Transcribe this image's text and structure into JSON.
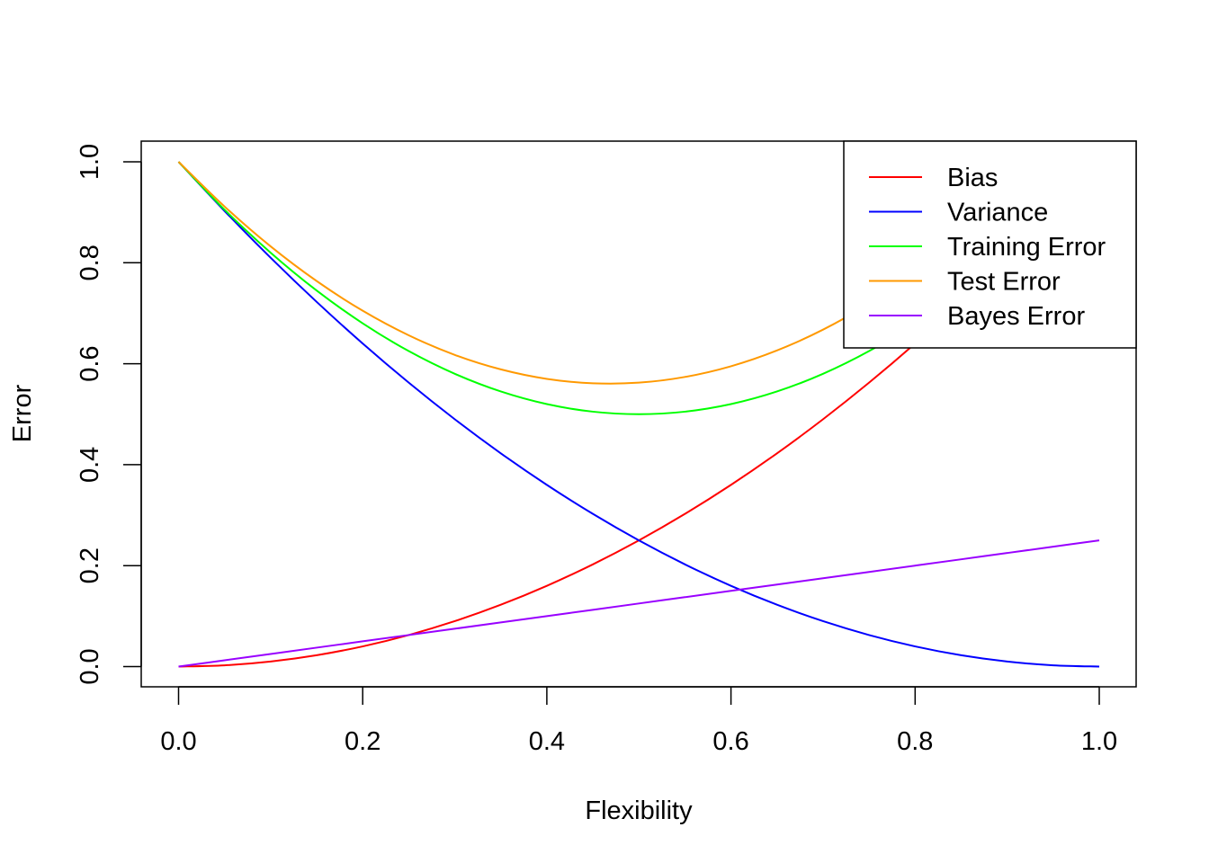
{
  "chart_data": {
    "type": "line",
    "xlabel": "Flexibility",
    "ylabel": "Error",
    "xlim": [
      0,
      1
    ],
    "ylim": [
      0,
      1
    ],
    "x_ticks": [
      "0.0",
      "0.2",
      "0.4",
      "0.6",
      "0.8",
      "1.0"
    ],
    "y_ticks": [
      "0.0",
      "0.2",
      "0.4",
      "0.6",
      "0.8",
      "1.0"
    ],
    "x": [
      0.0,
      0.05,
      0.1,
      0.15,
      0.2,
      0.25,
      0.3,
      0.35,
      0.4,
      0.45,
      0.5,
      0.55,
      0.6,
      0.65,
      0.7,
      0.75,
      0.8,
      0.85,
      0.9,
      0.95,
      1.0
    ],
    "legend_position": "top-right",
    "grid": false,
    "series": [
      {
        "name": "Bias",
        "color": "#ff0000",
        "values": [
          0.0,
          0.0025,
          0.01,
          0.0225,
          0.04,
          0.0625,
          0.09,
          0.1225,
          0.16,
          0.2025,
          0.25,
          0.3025,
          0.36,
          0.4225,
          0.49,
          0.5625,
          0.64,
          0.7225,
          0.81,
          0.9025,
          1.0
        ]
      },
      {
        "name": "Variance",
        "color": "#0000ff",
        "values": [
          1.0,
          0.9025,
          0.81,
          0.7225,
          0.64,
          0.5625,
          0.49,
          0.4225,
          0.36,
          0.3025,
          0.25,
          0.2025,
          0.16,
          0.1225,
          0.09,
          0.0625,
          0.04,
          0.0225,
          0.01,
          0.0025,
          0.0
        ]
      },
      {
        "name": "Training Error",
        "color": "#00ff00",
        "values": [
          1.0,
          0.905,
          0.82,
          0.745,
          0.68,
          0.625,
          0.58,
          0.545,
          0.52,
          0.505,
          0.5,
          0.505,
          0.52,
          0.545,
          0.58,
          0.625,
          0.68,
          0.745,
          0.82,
          0.905,
          1.0
        ]
      },
      {
        "name": "Test Error",
        "color": "#ff9900",
        "values": [
          1.0,
          0.9113,
          0.8325,
          0.7638,
          0.705,
          0.6563,
          0.6175,
          0.5888,
          0.57,
          0.5613,
          0.5625,
          0.5738,
          0.595,
          0.6263,
          0.6675,
          0.7188,
          0.78,
          0.8513,
          0.9325,
          1.0238,
          1.125
        ]
      },
      {
        "name": "Bayes Error",
        "color": "#9900ff",
        "values": [
          0.0,
          0.0125,
          0.025,
          0.0375,
          0.05,
          0.0625,
          0.075,
          0.0875,
          0.1,
          0.1125,
          0.125,
          0.1375,
          0.15,
          0.1625,
          0.175,
          0.1875,
          0.2,
          0.2125,
          0.225,
          0.2375,
          0.25
        ]
      }
    ]
  }
}
